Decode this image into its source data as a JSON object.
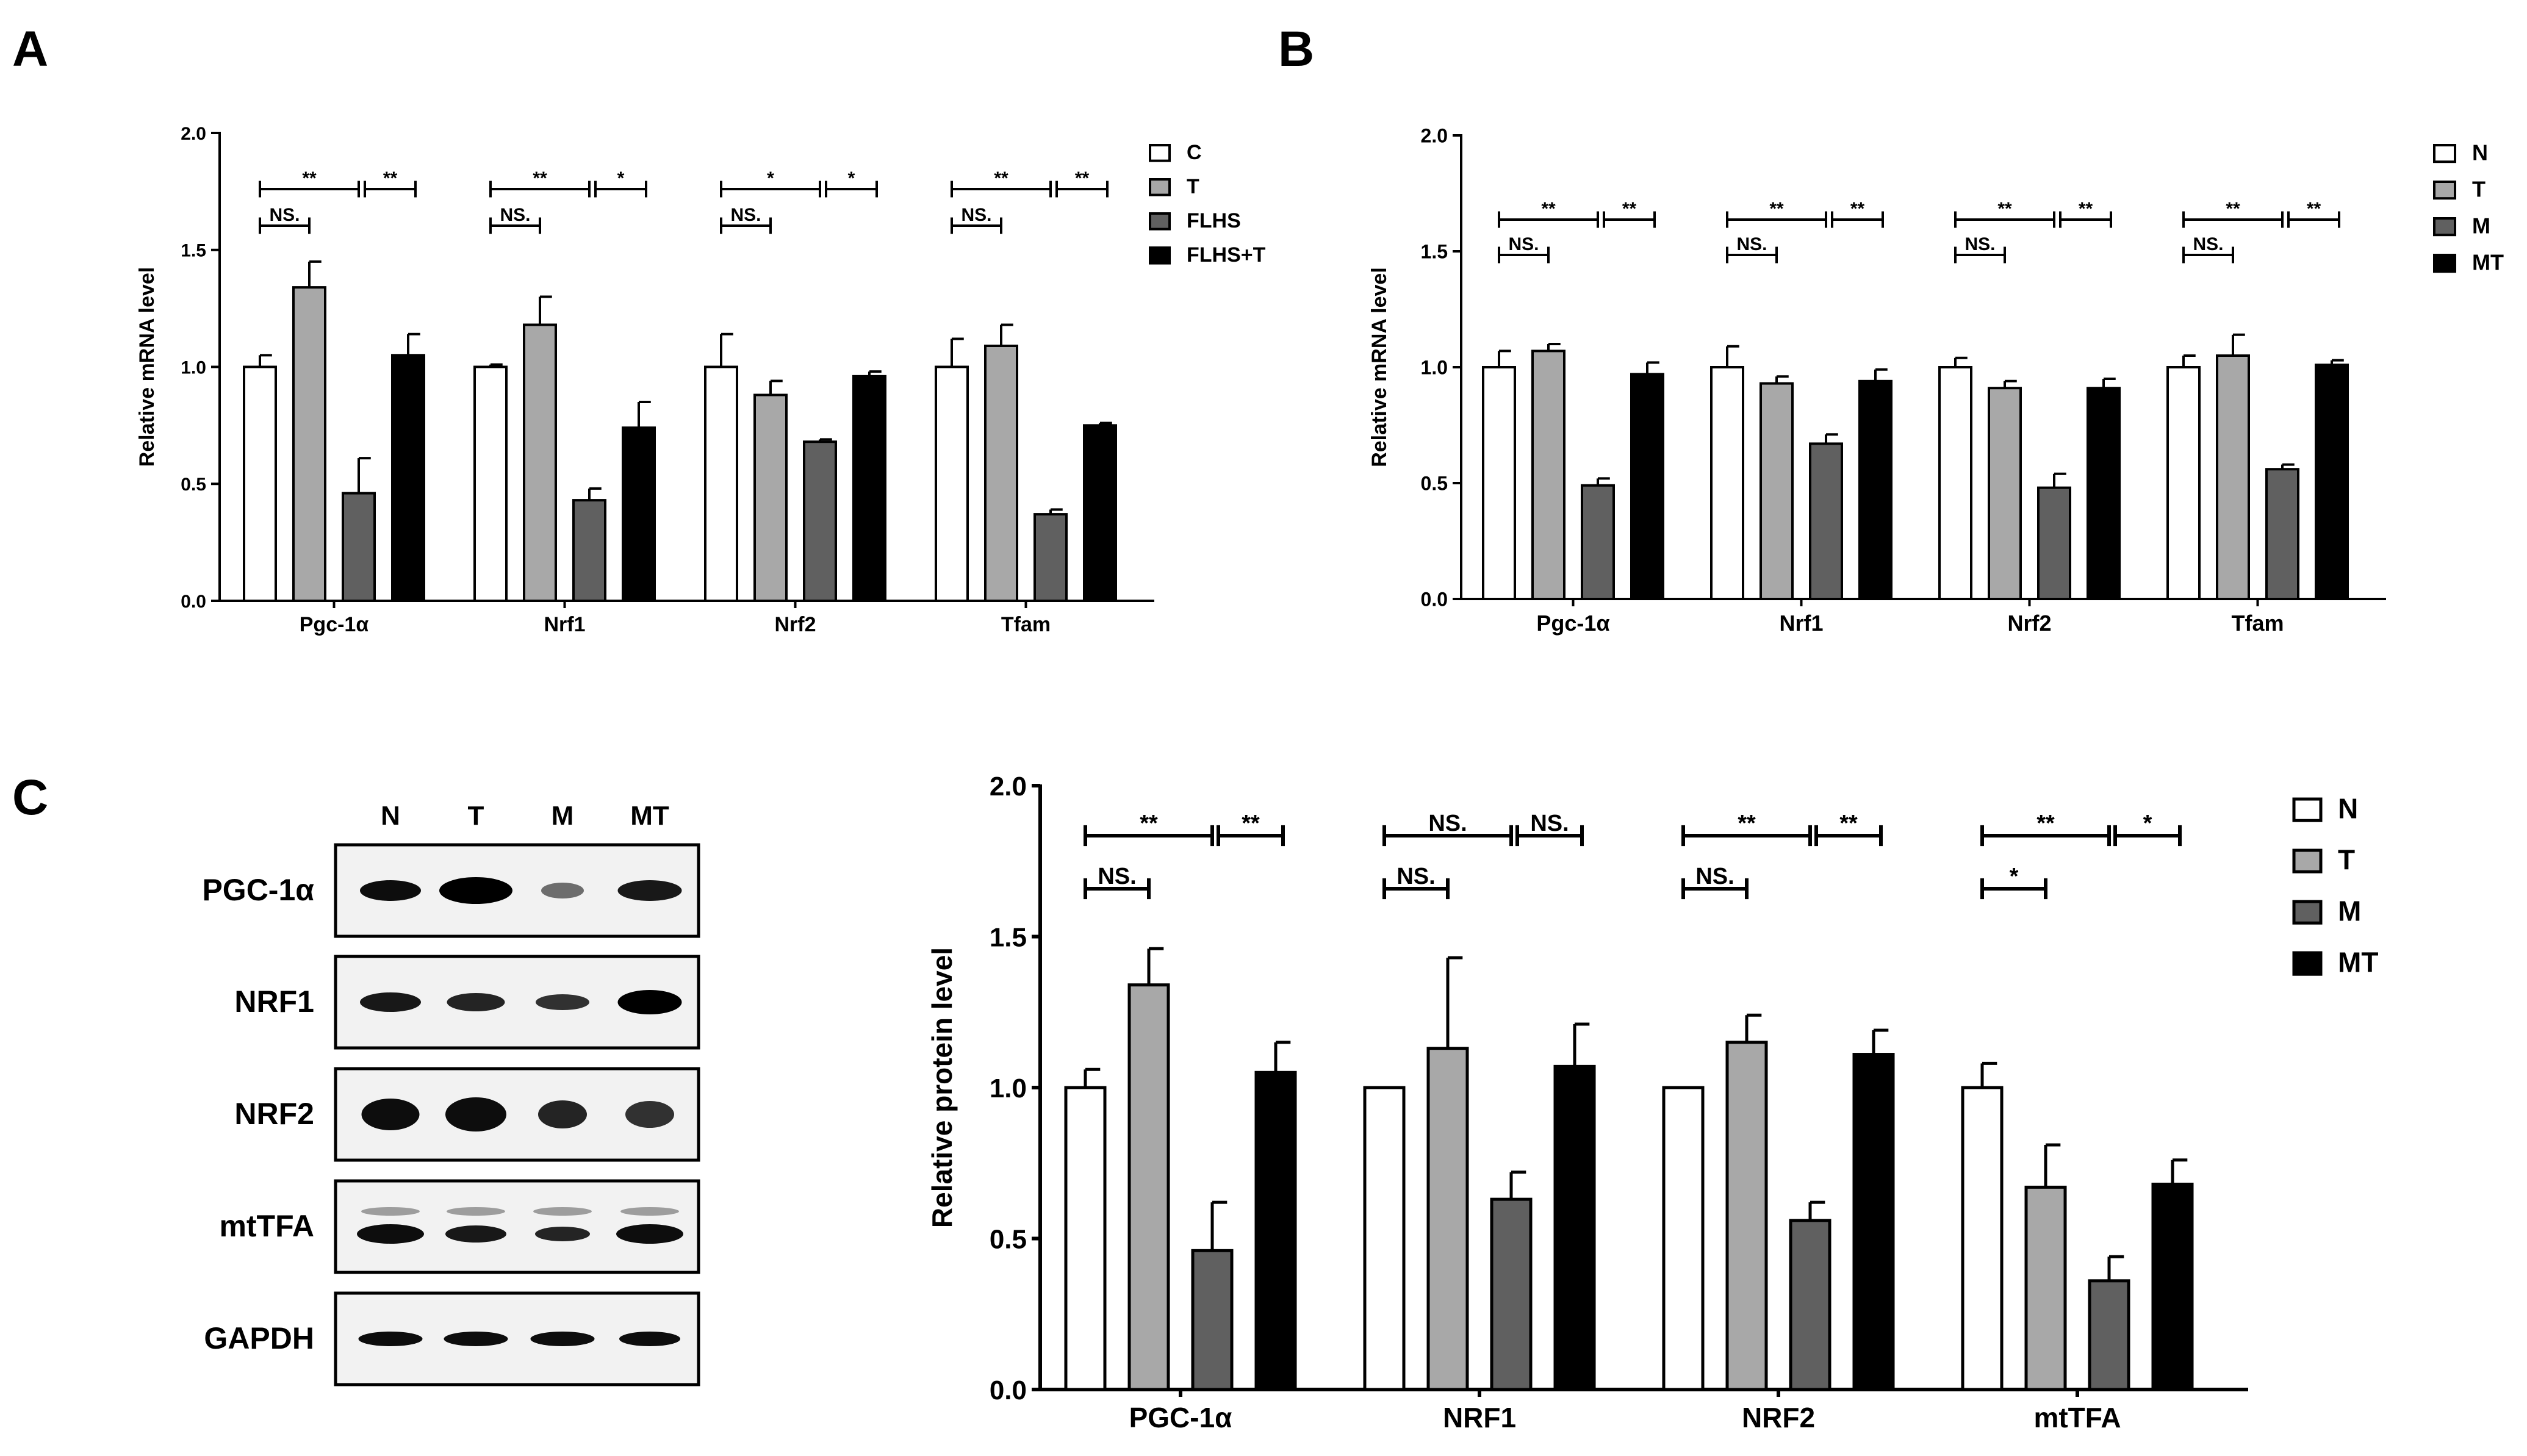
{
  "panels": {
    "a": "A",
    "b": "B",
    "c": "C"
  },
  "blot": {
    "lanes": [
      "N",
      "T",
      "M",
      "MT"
    ],
    "rows": [
      "PGC-1α",
      "NRF1",
      "NRF2",
      "mtTFA",
      "GAPDH"
    ]
  },
  "chart_data": [
    {
      "id": "A",
      "type": "bar",
      "title": "",
      "xlabel": "",
      "ylabel": "Relative mRNA level",
      "ylim": [
        0,
        2.0
      ],
      "yticks": [
        "0.0",
        "0.5",
        "1.0",
        "1.5",
        "2.0"
      ],
      "categories": [
        "Pgc-1α",
        "Nrf1",
        "Nrf2",
        "Tfam"
      ],
      "series": [
        {
          "name": "C",
          "values": [
            1.0,
            1.0,
            1.0,
            1.0
          ],
          "errors": [
            0.05,
            0.01,
            0.14,
            0.12
          ],
          "color": "#ffffff"
        },
        {
          "name": "T",
          "values": [
            1.34,
            1.18,
            0.88,
            1.09
          ],
          "errors": [
            0.11,
            0.12,
            0.06,
            0.09
          ],
          "color": "#a8a8a8"
        },
        {
          "name": "FLHS",
          "values": [
            0.46,
            0.43,
            0.68,
            0.37
          ],
          "errors": [
            0.15,
            0.05,
            0.01,
            0.02
          ],
          "color": "#606060"
        },
        {
          "name": "FLHS+T",
          "values": [
            1.05,
            0.74,
            0.96,
            0.75
          ],
          "errors": [
            0.09,
            0.11,
            0.02,
            0.01
          ],
          "color": "#000000"
        }
      ],
      "significance": [
        {
          "ns": "NS.",
          "long": "**",
          "right": "**"
        },
        {
          "ns": "NS.",
          "long": "**",
          "right": "*"
        },
        {
          "ns": "NS.",
          "long": "*",
          "right": "*"
        },
        {
          "ns": "NS.",
          "long": "**",
          "right": "**"
        }
      ],
      "legend_position": "right"
    },
    {
      "id": "B",
      "type": "bar",
      "title": "",
      "xlabel": "",
      "ylabel": "Relative mRNA level",
      "ylim": [
        0,
        2.0
      ],
      "yticks": [
        "0.0",
        "0.5",
        "1.0",
        "1.5",
        "2.0"
      ],
      "categories": [
        "Pgc-1α",
        "Nrf1",
        "Nrf2",
        "Tfam"
      ],
      "series": [
        {
          "name": "N",
          "values": [
            1.0,
            1.0,
            1.0,
            1.0
          ],
          "errors": [
            0.07,
            0.09,
            0.04,
            0.05
          ],
          "color": "#ffffff"
        },
        {
          "name": "T",
          "values": [
            1.07,
            0.93,
            0.91,
            1.05
          ],
          "errors": [
            0.03,
            0.03,
            0.03,
            0.09
          ],
          "color": "#a8a8a8"
        },
        {
          "name": "M",
          "values": [
            0.49,
            0.67,
            0.48,
            0.56
          ],
          "errors": [
            0.03,
            0.04,
            0.06,
            0.02
          ],
          "color": "#606060"
        },
        {
          "name": "MT",
          "values": [
            0.97,
            0.94,
            0.91,
            1.01
          ],
          "errors": [
            0.05,
            0.05,
            0.04,
            0.02
          ],
          "color": "#000000"
        }
      ],
      "significance": [
        {
          "ns": "NS.",
          "long": "**",
          "right": "**"
        },
        {
          "ns": "NS.",
          "long": "**",
          "right": "**"
        },
        {
          "ns": "NS.",
          "long": "**",
          "right": "**"
        },
        {
          "ns": "NS.",
          "long": "**",
          "right": "**"
        }
      ],
      "legend_position": "right"
    },
    {
      "id": "C",
      "type": "bar",
      "title": "",
      "xlabel": "",
      "ylabel": "Relative protein level",
      "ylim": [
        0,
        2.0
      ],
      "yticks": [
        "0.0",
        "0.5",
        "1.0",
        "1.5",
        "2.0"
      ],
      "categories": [
        "PGC-1α",
        "NRF1",
        "NRF2",
        "mtTFA"
      ],
      "series": [
        {
          "name": "N",
          "values": [
            1.0,
            1.0,
            1.0,
            1.0
          ],
          "errors": [
            0.06,
            0,
            0,
            0.08
          ],
          "color": "#ffffff"
        },
        {
          "name": "T",
          "values": [
            1.34,
            1.13,
            1.15,
            0.67
          ],
          "errors": [
            0.12,
            0.3,
            0.09,
            0.14
          ],
          "color": "#a8a8a8"
        },
        {
          "name": "M",
          "values": [
            0.46,
            0.63,
            0.56,
            0.36
          ],
          "errors": [
            0.16,
            0.09,
            0.06,
            0.08
          ],
          "color": "#606060"
        },
        {
          "name": "MT",
          "values": [
            1.05,
            1.07,
            1.11,
            0.68
          ],
          "errors": [
            0.1,
            0.14,
            0.08,
            0.08
          ],
          "color": "#000000"
        }
      ],
      "significance": [
        {
          "ns": "NS.",
          "long": "**",
          "right": "**"
        },
        {
          "ns": "NS.",
          "long": "NS.",
          "right": "NS."
        },
        {
          "ns": "NS.",
          "long": "**",
          "right": "**"
        },
        {
          "ns": "*",
          "long": "**",
          "right": "*"
        }
      ],
      "legend_position": "right"
    }
  ]
}
